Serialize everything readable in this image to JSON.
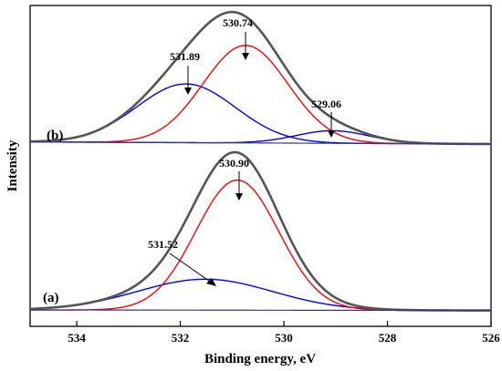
{
  "chart_data": {
    "type": "line",
    "title": "",
    "xlabel": "Binding energy, eV",
    "ylabel": "Intensity",
    "x_reversed": true,
    "xlim": [
      534.9,
      526
    ],
    "xticks": [
      534,
      532,
      530,
      528,
      526
    ],
    "y_ticks_shown": false,
    "grid": false,
    "legend": "none",
    "panels": [
      {
        "label": "(b)",
        "baseline": {
          "x": [
            534.9,
            526
          ],
          "y": [
            0.02,
            0.0
          ]
        },
        "peaks": [
          {
            "center": 531.89,
            "height": 0.56,
            "sigma": 0.95,
            "color": "#0000ff"
          },
          {
            "center": 530.74,
            "height": 0.93,
            "sigma": 0.82,
            "color": "#ff0000"
          },
          {
            "center": 529.06,
            "height": 0.12,
            "sigma": 0.7,
            "color": "#0000ff"
          }
        ],
        "envelope_color": "#555555",
        "annotations": [
          "531.89",
          "530.74",
          "529.06"
        ]
      },
      {
        "label": "(a)",
        "baseline": {
          "x": [
            534.9,
            526
          ],
          "y": [
            0.0,
            -0.005
          ]
        },
        "peaks": [
          {
            "center": 531.52,
            "height": 0.29,
            "sigma": 1.3,
            "color": "#0000ff"
          },
          {
            "center": 530.9,
            "height": 1.22,
            "sigma": 0.8,
            "color": "#ff0000"
          }
        ],
        "envelope_color": "#555555",
        "annotations": [
          "531.52",
          "530.90"
        ]
      }
    ]
  }
}
